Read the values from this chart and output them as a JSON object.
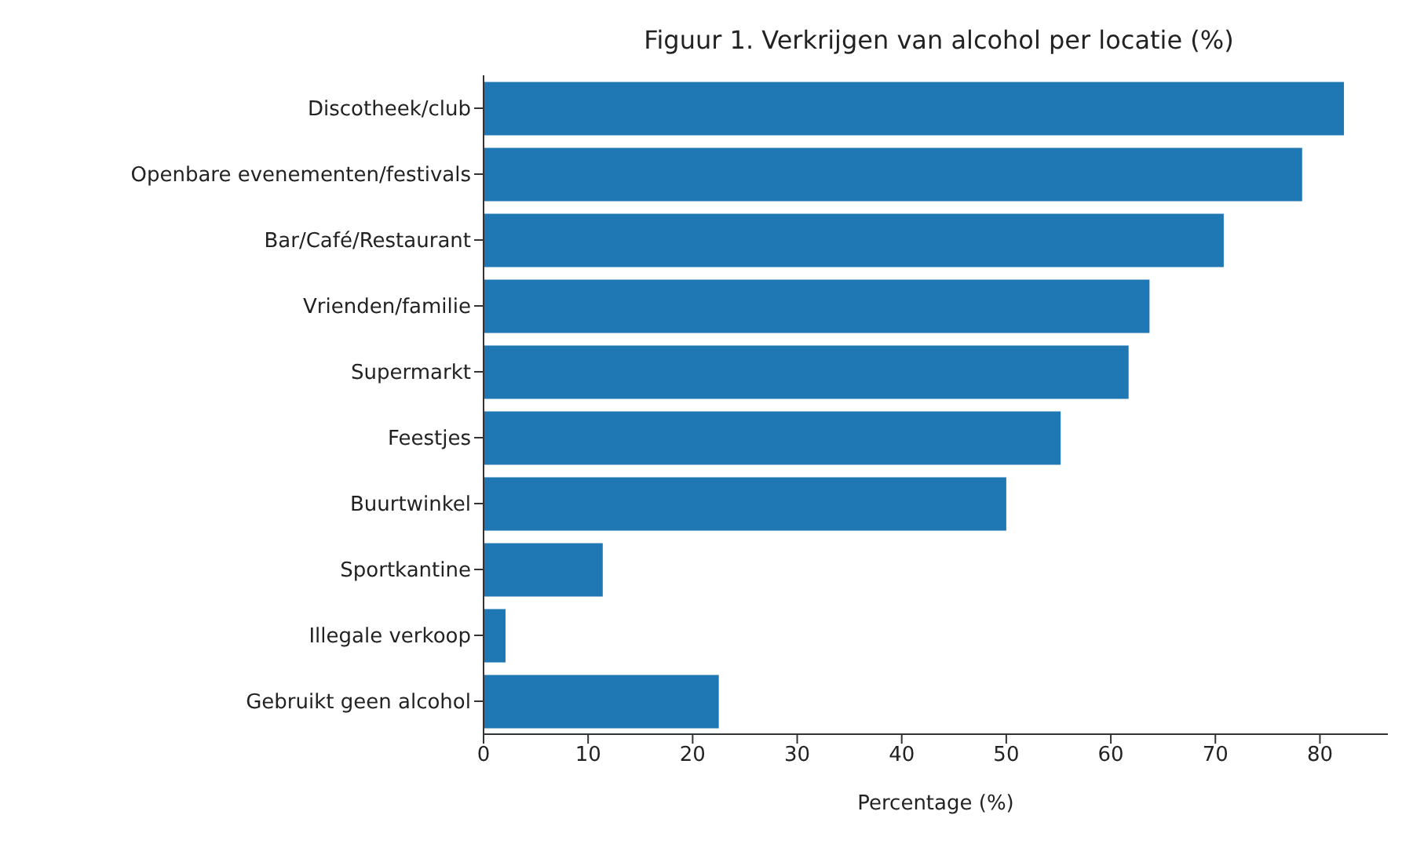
{
  "chart_data": {
    "type": "bar",
    "orientation": "horizontal",
    "title": "Figuur 1. Verkrijgen van alcohol per locatie (%)",
    "xlabel": "Percentage (%)",
    "categories": [
      "Discotheek/club",
      "Openbare evenementen/festivals",
      "Bar/Café/Restaurant",
      "Vrienden/familie",
      "Supermarkt",
      "Feestjes",
      "Buurtwinkel",
      "Sportkantine",
      "Illegale verkoop",
      "Gebruikt geen alcohol"
    ],
    "values": [
      82.3,
      78.3,
      70.8,
      63.7,
      61.7,
      55.2,
      50.0,
      11.4,
      2.1,
      22.5
    ],
    "color": "#1f77b4",
    "xlim": [
      0,
      86.5
    ],
    "xticks": [
      0,
      10,
      20,
      30,
      40,
      50,
      60,
      70,
      80
    ]
  }
}
